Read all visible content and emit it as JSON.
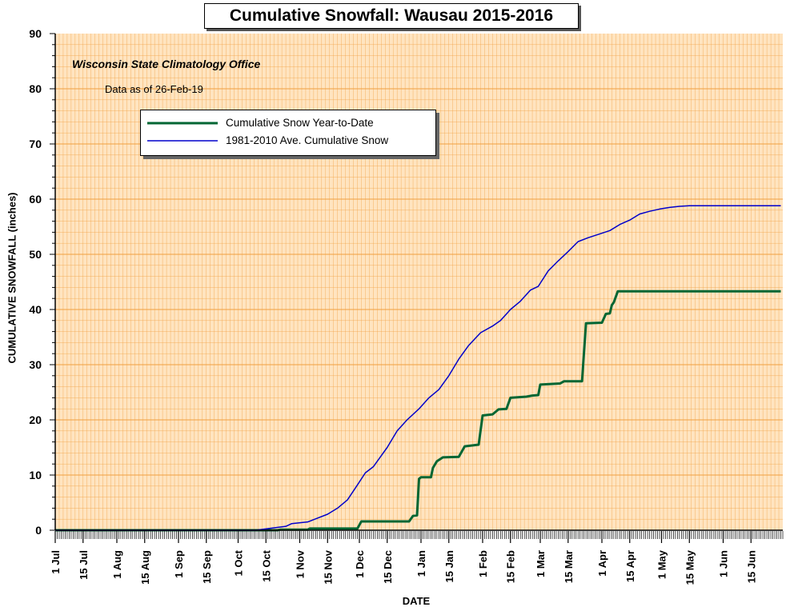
{
  "chart_data": {
    "type": "line",
    "title": "Cumulative Snowfall: Wausau 2015-2016",
    "credit": "Wisconsin State Climatology Office",
    "data_as_of": "Data as of 26-Feb-19",
    "xlabel": "DATE",
    "ylabel": "CUMULATIVE SNOWFALL (inches)",
    "ylim": [
      0,
      90
    ],
    "yticks": [
      "0",
      "10",
      "20",
      "30",
      "40",
      "50",
      "60",
      "70",
      "80",
      "90"
    ],
    "xlim": [
      "2015-07-01",
      "2016-06-30"
    ],
    "xticks": [
      {
        "date": "2015-07-01",
        "label": "1 Jul"
      },
      {
        "date": "2015-07-15",
        "label": "15 Jul"
      },
      {
        "date": "2015-08-01",
        "label": "1 Aug"
      },
      {
        "date": "2015-08-15",
        "label": "15 Aug"
      },
      {
        "date": "2015-09-01",
        "label": "1 Sep"
      },
      {
        "date": "2015-09-15",
        "label": "15 Sep"
      },
      {
        "date": "2015-10-01",
        "label": "1 Oct"
      },
      {
        "date": "2015-10-15",
        "label": "15 Oct"
      },
      {
        "date": "2015-11-01",
        "label": "1 Nov"
      },
      {
        "date": "2015-11-15",
        "label": "15 Nov"
      },
      {
        "date": "2015-12-01",
        "label": "1 Dec"
      },
      {
        "date": "2015-12-15",
        "label": "15 Dec"
      },
      {
        "date": "2016-01-01",
        "label": "1 Jan"
      },
      {
        "date": "2016-01-15",
        "label": "15 Jan"
      },
      {
        "date": "2016-02-01",
        "label": "1 Feb"
      },
      {
        "date": "2016-02-15",
        "label": "15 Feb"
      },
      {
        "date": "2016-03-01",
        "label": "1 Mar"
      },
      {
        "date": "2016-03-15",
        "label": "15 Mar"
      },
      {
        "date": "2016-04-01",
        "label": "1 Apr"
      },
      {
        "date": "2016-04-15",
        "label": "15 Apr"
      },
      {
        "date": "2016-05-01",
        "label": "1 May"
      },
      {
        "date": "2016-05-15",
        "label": "15 May"
      },
      {
        "date": "2016-06-01",
        "label": "1 Jun"
      },
      {
        "date": "2016-06-15",
        "label": "15 Jun"
      }
    ],
    "grid": true,
    "legend_position": "top-left",
    "background_color": "#FFE4C0",
    "grid_color": "#F0A040",
    "series": [
      {
        "name": "Cumulative Snow Year-to-Date",
        "color": "#006633",
        "step": true,
        "points": [
          [
            "2015-07-01",
            0
          ],
          [
            "2015-10-21",
            0
          ],
          [
            "2015-10-22",
            0.1
          ],
          [
            "2015-11-05",
            0.1
          ],
          [
            "2015-11-06",
            0.3
          ],
          [
            "2015-11-30",
            0.3
          ],
          [
            "2015-12-02",
            1.6
          ],
          [
            "2015-12-26",
            1.6
          ],
          [
            "2015-12-28",
            2.6
          ],
          [
            "2015-12-30",
            2.7
          ],
          [
            "2015-12-31",
            9.3
          ],
          [
            "2016-01-01",
            9.6
          ],
          [
            "2016-01-06",
            9.6
          ],
          [
            "2016-01-07",
            11.3
          ],
          [
            "2016-01-09",
            12.5
          ],
          [
            "2016-01-12",
            13.2
          ],
          [
            "2016-01-20",
            13.3
          ],
          [
            "2016-01-23",
            15.2
          ],
          [
            "2016-01-30",
            15.5
          ],
          [
            "2016-02-01",
            20.8
          ],
          [
            "2016-02-06",
            21.0
          ],
          [
            "2016-02-09",
            21.9
          ],
          [
            "2016-02-13",
            22.0
          ],
          [
            "2016-02-15",
            24.0
          ],
          [
            "2016-02-23",
            24.2
          ],
          [
            "2016-02-26",
            24.4
          ],
          [
            "2016-02-29",
            24.5
          ],
          [
            "2016-03-01",
            26.4
          ],
          [
            "2016-03-11",
            26.6
          ],
          [
            "2016-03-13",
            27.0
          ],
          [
            "2016-03-22",
            27.0
          ],
          [
            "2016-03-24",
            37.5
          ],
          [
            "2016-04-01",
            37.6
          ],
          [
            "2016-04-03",
            39.2
          ],
          [
            "2016-04-05",
            39.3
          ],
          [
            "2016-04-06",
            40.8
          ],
          [
            "2016-04-07",
            41.3
          ],
          [
            "2016-04-09",
            43.3
          ],
          [
            "2016-06-30",
            43.3
          ]
        ]
      },
      {
        "name": "1981-2010 Ave. Cumulative Snow",
        "color": "#0000CC",
        "step": false,
        "points": [
          [
            "2015-07-01",
            0
          ],
          [
            "2015-10-10",
            0
          ],
          [
            "2015-10-14",
            0.2
          ],
          [
            "2015-10-25",
            0.7
          ],
          [
            "2015-10-28",
            1.2
          ],
          [
            "2015-11-05",
            1.5
          ],
          [
            "2015-11-10",
            2.2
          ],
          [
            "2015-11-15",
            2.9
          ],
          [
            "2015-11-20",
            4.0
          ],
          [
            "2015-11-25",
            5.5
          ],
          [
            "2015-11-30",
            8.2
          ],
          [
            "2015-12-04",
            10.4
          ],
          [
            "2015-12-08",
            11.5
          ],
          [
            "2015-12-11",
            13.0
          ],
          [
            "2015-12-15",
            15.0
          ],
          [
            "2015-12-20",
            18.0
          ],
          [
            "2015-12-25",
            20.0
          ],
          [
            "2015-12-31",
            22.0
          ],
          [
            "2016-01-05",
            24.0
          ],
          [
            "2016-01-10",
            25.5
          ],
          [
            "2016-01-15",
            28.0
          ],
          [
            "2016-01-20",
            31.0
          ],
          [
            "2016-01-25",
            33.5
          ],
          [
            "2016-01-31",
            35.8
          ],
          [
            "2016-02-06",
            37.0
          ],
          [
            "2016-02-10",
            38.0
          ],
          [
            "2016-02-15",
            40.0
          ],
          [
            "2016-02-20",
            41.5
          ],
          [
            "2016-02-25",
            43.5
          ],
          [
            "2016-02-29",
            44.2
          ],
          [
            "2016-03-05",
            47.0
          ],
          [
            "2016-03-10",
            48.8
          ],
          [
            "2016-03-15",
            50.5
          ],
          [
            "2016-03-20",
            52.3
          ],
          [
            "2016-03-25",
            53.0
          ],
          [
            "2016-03-31",
            53.7
          ],
          [
            "2016-04-05",
            54.3
          ],
          [
            "2016-04-10",
            55.4
          ],
          [
            "2016-04-15",
            56.2
          ],
          [
            "2016-04-20",
            57.3
          ],
          [
            "2016-04-25",
            57.8
          ],
          [
            "2016-04-30",
            58.2
          ],
          [
            "2016-05-05",
            58.5
          ],
          [
            "2016-05-10",
            58.7
          ],
          [
            "2016-05-15",
            58.8
          ],
          [
            "2016-06-30",
            58.8
          ]
        ]
      }
    ]
  }
}
